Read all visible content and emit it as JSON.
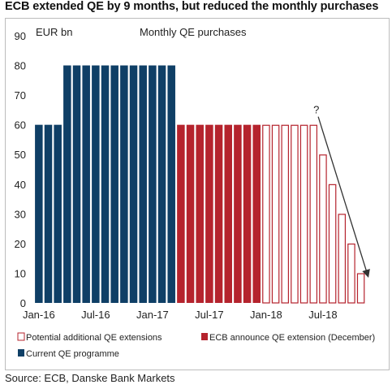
{
  "title": "ECB extended QE by 9 months, but reduced the monthly purchases",
  "source": "Source: ECB, Danske Bank Markets",
  "colors": {
    "current": "#0f3f66",
    "announced": "#b5232d",
    "potential_edge": "#b5232d",
    "potential_fill": "#ffffff"
  },
  "chart_data": {
    "type": "bar",
    "unit_label": "EUR bn",
    "chart_title": "Monthly QE purchases",
    "ylim": [
      0,
      90
    ],
    "yticks": [
      0,
      10,
      20,
      30,
      40,
      50,
      60,
      70,
      80,
      90
    ],
    "x_tick_labels": [
      "Jan-16",
      "Jul-16",
      "Jan-17",
      "Jul-17",
      "Jan-18",
      "Jul-18"
    ],
    "x_tick_index": [
      0,
      6,
      12,
      18,
      24,
      30
    ],
    "categories": [
      "Jan-16",
      "Feb-16",
      "Mar-16",
      "Apr-16",
      "May-16",
      "Jun-16",
      "Jul-16",
      "Aug-16",
      "Sep-16",
      "Oct-16",
      "Nov-16",
      "Dec-16",
      "Jan-17",
      "Feb-17",
      "Mar-17",
      "Apr-17",
      "May-17",
      "Jun-17",
      "Jul-17",
      "Aug-17",
      "Sep-17",
      "Oct-17",
      "Nov-17",
      "Dec-17",
      "Jan-18",
      "Feb-18",
      "Mar-18",
      "Apr-18",
      "May-18",
      "Jun-18",
      "Jul-18",
      "Aug-18",
      "Sep-18",
      "Oct-18",
      "Nov-18",
      "Dec-18"
    ],
    "series": [
      {
        "name": "Current QE programme",
        "style": "solid-navy",
        "values": [
          60,
          60,
          60,
          80,
          80,
          80,
          80,
          80,
          80,
          80,
          80,
          80,
          80,
          80,
          80,
          null,
          null,
          null,
          null,
          null,
          null,
          null,
          null,
          null,
          null,
          null,
          null,
          null,
          null,
          null,
          null,
          null,
          null,
          null,
          null,
          null
        ]
      },
      {
        "name": "ECB announce QE extension (December)",
        "style": "solid-red",
        "values": [
          null,
          null,
          null,
          null,
          null,
          null,
          null,
          null,
          null,
          null,
          null,
          null,
          null,
          null,
          null,
          60,
          60,
          60,
          60,
          60,
          60,
          60,
          60,
          60,
          null,
          null,
          null,
          null,
          null,
          null,
          null,
          null,
          null,
          null,
          null,
          null
        ]
      },
      {
        "name": "Potential additional QE extensions",
        "style": "outline-red",
        "values": [
          null,
          null,
          null,
          null,
          null,
          null,
          null,
          null,
          null,
          null,
          null,
          null,
          null,
          null,
          null,
          null,
          null,
          null,
          null,
          null,
          null,
          null,
          null,
          null,
          60,
          60,
          60,
          60,
          60,
          60,
          50,
          40,
          30,
          20,
          10,
          null
        ]
      }
    ],
    "annotations": [
      {
        "text": "?",
        "anchor": "above arrow start"
      },
      {
        "type": "arrow",
        "from": "Jul-18 at 60",
        "to": "end at 0"
      }
    ],
    "legend": {
      "placement": "bottom",
      "entries": [
        "Potential additional QE extensions",
        "ECB announce QE extension (December)",
        "Current QE programme"
      ]
    }
  }
}
